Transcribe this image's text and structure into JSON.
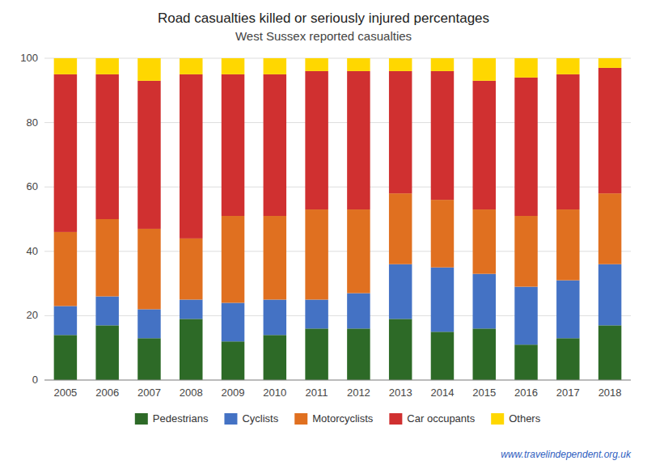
{
  "chart_data": {
    "type": "bar",
    "stacked": true,
    "title": "Road casualties killed or seriously injured percentages",
    "subtitle": "West Sussex reported casualties",
    "annotations": [
      "www.travelindependent.org.uk"
    ],
    "categories": [
      "2005",
      "2006",
      "2007",
      "2008",
      "2009",
      "2010",
      "2011",
      "2012",
      "2013",
      "2014",
      "2015",
      "2016",
      "2017",
      "2018"
    ],
    "series": [
      {
        "name": "Pedestrians",
        "color": "#2d6a27",
        "values": [
          14,
          17,
          13,
          19,
          12,
          14,
          16,
          16,
          19,
          15,
          16,
          11,
          13,
          17
        ]
      },
      {
        "name": "Cyclists",
        "color": "#4472c4",
        "values": [
          9,
          9,
          9,
          6,
          12,
          11,
          9,
          11,
          17,
          20,
          17,
          18,
          18,
          19
        ]
      },
      {
        "name": "Motorcyclists",
        "color": "#e07020",
        "values": [
          23,
          24,
          25,
          19,
          27,
          26,
          28,
          26,
          22,
          21,
          20,
          22,
          22,
          22
        ]
      },
      {
        "name": "Car occupants",
        "color": "#d03030",
        "values": [
          49,
          45,
          46,
          51,
          44,
          44,
          43,
          43,
          38,
          40,
          40,
          43,
          42,
          39
        ]
      },
      {
        "name": "Others",
        "color": "#ffd700",
        "values": [
          5,
          5,
          7,
          5,
          5,
          5,
          4,
          4,
          4,
          4,
          7,
          6,
          5,
          3
        ]
      }
    ],
    "ylim": [
      0,
      100
    ],
    "yticks": [
      0,
      20,
      40,
      60,
      80,
      100
    ],
    "grid": true,
    "legend": "bottom"
  }
}
